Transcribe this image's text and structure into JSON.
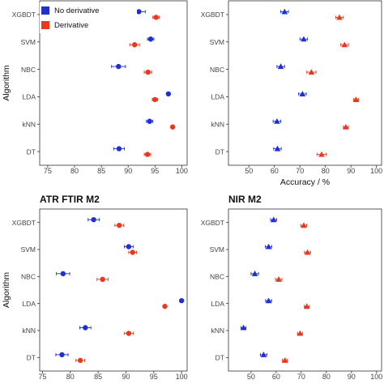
{
  "legend": {
    "items": [
      {
        "label": "No derivative",
        "color": "#1f2fd6"
      },
      {
        "label": "Derivative",
        "color": "#e8391f"
      }
    ]
  },
  "colors": {
    "no_derivative": "#1f2fd6",
    "derivative": "#e8391f",
    "panel_border": "#333333"
  },
  "chart_data": [
    {
      "type": "scatter",
      "title": "",
      "xlabel": "",
      "ylabel": "Algorithm",
      "marker": "circle",
      "categories": [
        "XGBDT",
        "SVM",
        "NBC",
        "LDA",
        "kNN",
        "DT"
      ],
      "xlim": [
        73.5,
        101
      ],
      "xticks": [
        75,
        80,
        85,
        90,
        95,
        100
      ],
      "grid": false,
      "legend": "top-left",
      "series": [
        {
          "name": "No derivative",
          "values": [
            92,
            94.2,
            88.2,
            97.5,
            94,
            88.3
          ],
          "errors": [
            1.2,
            0.6,
            1.3,
            0,
            0.6,
            1.0
          ]
        },
        {
          "name": "Derivative",
          "values": [
            95.2,
            91.2,
            93.7,
            95,
            98.3,
            93.6
          ],
          "errors": [
            0.6,
            0.9,
            0.7,
            0.5,
            0,
            0.6
          ]
        }
      ]
    },
    {
      "type": "scatter",
      "title": "",
      "xlabel": "Accuracy / %",
      "ylabel": "",
      "marker": "triangle",
      "categories": [
        "XGBDT",
        "SVM",
        "NBC",
        "LDA",
        "kNN",
        "DT"
      ],
      "xlim": [
        42,
        102
      ],
      "xticks": [
        50,
        60,
        70,
        80,
        90,
        100
      ],
      "grid": false,
      "series": [
        {
          "name": "No derivative",
          "values": [
            64,
            71.5,
            62.5,
            71,
            61,
            61.2
          ],
          "errors": [
            1.5,
            1.5,
            1.5,
            1.5,
            1.5,
            1.5
          ]
        },
        {
          "name": "Derivative",
          "values": [
            85.5,
            87.5,
            74.5,
            92,
            88,
            78.5
          ],
          "errors": [
            1.5,
            1.5,
            1.8,
            1.0,
            1.0,
            1.8
          ]
        }
      ]
    },
    {
      "type": "scatter",
      "title": "ATR FTIR M2",
      "xlabel": "",
      "ylabel": "Algorithm",
      "marker": "circle",
      "categories": [
        "XGBDT",
        "SVM",
        "NBC",
        "LDA",
        "kNN",
        "DT"
      ],
      "xlim": [
        74.5,
        101
      ],
      "xticks": [
        75,
        80,
        85,
        90,
        95,
        100
      ],
      "grid": false,
      "series": [
        {
          "name": "No derivative",
          "values": [
            84.2,
            90.5,
            78.7,
            100,
            82.7,
            78.5
          ],
          "errors": [
            1.0,
            0.8,
            1.2,
            0,
            1.0,
            1.1
          ]
        },
        {
          "name": "Derivative",
          "values": [
            88.8,
            91.2,
            85.8,
            97,
            90.5,
            81.8
          ],
          "errors": [
            0.8,
            0.7,
            1.0,
            0,
            0.8,
            0.8
          ]
        }
      ]
    },
    {
      "type": "scatter",
      "title": "NIR M2",
      "xlabel": "",
      "ylabel": "",
      "marker": "triangle",
      "categories": [
        "XGBDT",
        "SVM",
        "NBC",
        "LDA",
        "kNN",
        "DT"
      ],
      "xlim": [
        41,
        102
      ],
      "xticks": [
        50,
        60,
        70,
        80,
        90,
        100
      ],
      "grid": false,
      "series": [
        {
          "name": "No derivative",
          "values": [
            59,
            57,
            51.5,
            57,
            47,
            55
          ],
          "errors": [
            1.2,
            1.3,
            1.5,
            1.2,
            1.0,
            1.3
          ]
        },
        {
          "name": "Derivative",
          "values": [
            71,
            72.5,
            61,
            72.2,
            69.5,
            63.5
          ],
          "errors": [
            1.2,
            1.2,
            1.3,
            1.0,
            1.0,
            1.0
          ]
        }
      ]
    }
  ]
}
